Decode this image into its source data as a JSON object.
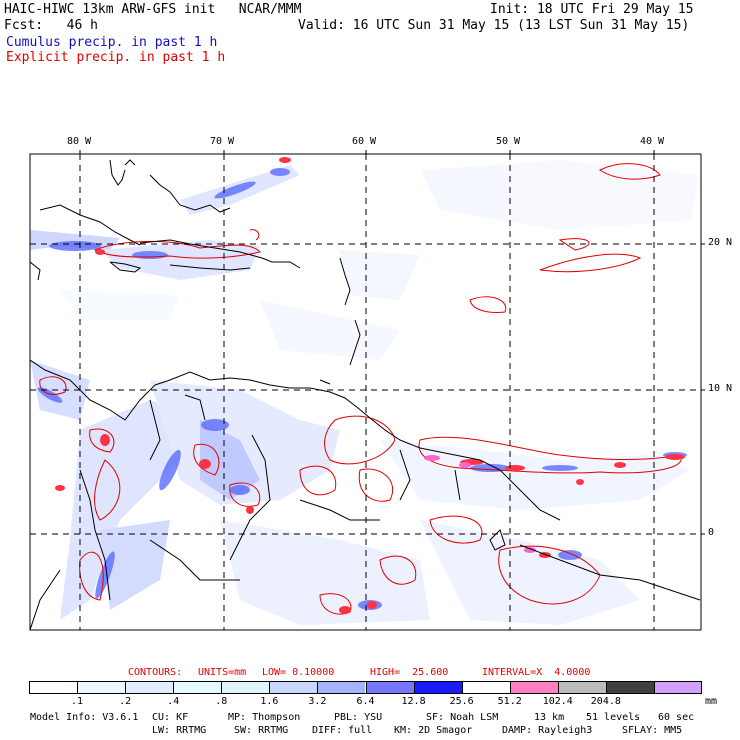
{
  "header": {
    "title": "HAIC-HIWC 13km ARW-GFS init   NCAR/MMM",
    "init": "Init: 18 UTC Fri 29 May 15",
    "fcst": "Fcst:   46 h",
    "valid": "Valid: 16 UTC Sun 31 May 15 (13 LST Sun 31 May 15)",
    "legend_cumulus": "Cumulus precip. in past 1 h",
    "legend_explicit": "Explicit precip. in past 1 h"
  },
  "map": {
    "lon_labels": [
      "80 W",
      "70 W",
      "60 W",
      "50 W",
      "40 W"
    ],
    "lat_labels": [
      "20 N",
      "10 N",
      "0"
    ]
  },
  "colorbar": {
    "contour_info": {
      "contours": "CONTOURS:",
      "units": "UNITS=mm",
      "low": "LOW= 0.10000",
      "high": "HIGH=  25.600",
      "interval": "INTERVAL=X  4.0000"
    },
    "ticks": [
      ".1",
      ".2",
      ".4",
      ".8",
      "1.6",
      "3.2",
      "6.4",
      "12.8",
      "25.6",
      "51.2",
      "102.4",
      "204.8"
    ],
    "unit": "mm",
    "colors": [
      "#ffffff",
      "#f0f6ff",
      "#e2eeff",
      "#e6fbff",
      "#dff5f7",
      "#c8d8ff",
      "#a4b4ff",
      "#7676ff",
      "#1a1aff",
      "#ffffff",
      "#ff80c0",
      "#bcbcbc",
      "#404040",
      "#d2a0ff"
    ]
  },
  "footer": {
    "line1": [
      "Model Info: V3.6.1",
      "CU: KF",
      "MP: Thompson",
      "PBL: YSU",
      "SF: Noah LSM",
      "13 km",
      "51 levels",
      "60 sec"
    ],
    "line2": [
      "LW: RRTMG",
      "SW: RRTMG",
      "DIFF: full",
      "KM: 2D Smagor",
      "DAMP: Rayleigh3",
      "SFLAY: MM5"
    ]
  }
}
